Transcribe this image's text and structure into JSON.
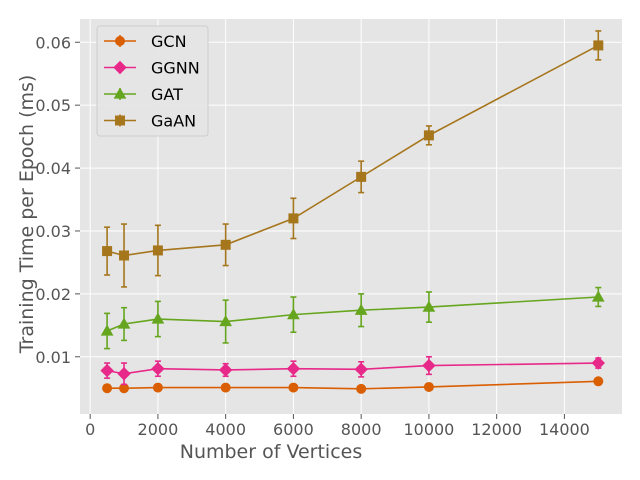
{
  "chart_data": {
    "type": "line",
    "xlabel": "Number of Vertices",
    "ylabel": "Training Time per Epoch (ms)",
    "xlim": [
      -300,
      15700
    ],
    "ylim": [
      0.0009,
      0.0637
    ],
    "x_ticks": [
      0,
      2000,
      4000,
      6000,
      8000,
      10000,
      12000,
      14000
    ],
    "x_tick_labels": [
      "0",
      "2000",
      "4000",
      "6000",
      "8000",
      "10000",
      "12000",
      "14000"
    ],
    "y_ticks": [
      0.01,
      0.02,
      0.03,
      0.04,
      0.05,
      0.06
    ],
    "y_tick_labels": [
      "0.01",
      "0.02",
      "0.03",
      "0.04",
      "0.05",
      "0.06"
    ],
    "grid": true,
    "legend_position": "top-left",
    "x": [
      500,
      1000,
      2000,
      4000,
      6000,
      8000,
      10000,
      15000
    ],
    "series": [
      {
        "name": "GCN",
        "color": "#d95f02",
        "marker": "circle",
        "values": [
          0.005,
          0.005,
          0.0051,
          0.0051,
          0.0051,
          0.0049,
          0.0052,
          0.0061
        ],
        "errors": [
          0.0003,
          0.0003,
          0.0003,
          0.0003,
          0.0003,
          0.0003,
          0.0003,
          0.0003
        ]
      },
      {
        "name": "GGNN",
        "color": "#e7298a",
        "marker": "diamond",
        "values": [
          0.0078,
          0.0073,
          0.0081,
          0.0079,
          0.0081,
          0.008,
          0.0086,
          0.009
        ],
        "errors": [
          0.0012,
          0.0017,
          0.0012,
          0.001,
          0.0012,
          0.0012,
          0.0014,
          0.0008
        ]
      },
      {
        "name": "GAT",
        "color": "#66a61e",
        "marker": "triangle",
        "values": [
          0.0141,
          0.0152,
          0.016,
          0.0156,
          0.0167,
          0.0174,
          0.0179,
          0.0195
        ],
        "errors": [
          0.0028,
          0.0026,
          0.0028,
          0.0034,
          0.0028,
          0.0026,
          0.0024,
          0.0015
        ]
      },
      {
        "name": "GaAN",
        "color": "#a6761d",
        "marker": "square",
        "values": [
          0.0268,
          0.0261,
          0.0269,
          0.0278,
          0.032,
          0.0386,
          0.0452,
          0.0595
        ],
        "errors": [
          0.0038,
          0.005,
          0.004,
          0.0033,
          0.0032,
          0.0025,
          0.0015,
          0.0023
        ]
      }
    ]
  }
}
